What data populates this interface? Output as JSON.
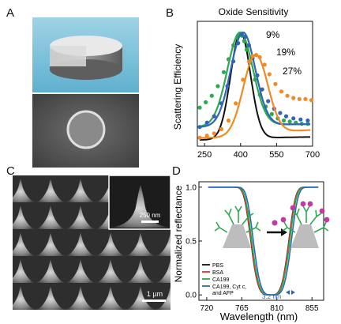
{
  "figure": {
    "panel_labels": [
      "A",
      "B",
      "C",
      "D"
    ],
    "panelC": {
      "inset_scale": "250 nm",
      "main_scale": "1 µm"
    }
  },
  "chart_data": [
    {
      "type": "line",
      "panel": "B",
      "title": "Oxide Sensitivity",
      "xlabel": "",
      "ylabel": "Scattering Efficiency",
      "xlim": [
        220,
        700
      ],
      "xticks": [
        250,
        400,
        550,
        700
      ],
      "xtick_labels": [
        "250",
        "400",
        "550",
        "700"
      ],
      "grid": false,
      "annotations": [
        "9%",
        "19%",
        "27%"
      ],
      "colors": {
        "black": "#111111",
        "green": "#2fa84f",
        "blue": "#2f66b5",
        "orange": "#f08a25"
      },
      "series": [
        {
          "color": "black",
          "peak": 400,
          "width": 58
        },
        {
          "color": "green",
          "peak": 398,
          "width": 75,
          "x": [
            230,
            255,
            280,
            305,
            330,
            350,
            370,
            385,
            395,
            405,
            415,
            425,
            440,
            460,
            480,
            505,
            530,
            555,
            580,
            605,
            630,
            655,
            680
          ],
          "y": [
            0.3,
            0.35,
            0.41,
            0.5,
            0.63,
            0.75,
            0.88,
            0.95,
            0.98,
            0.97,
            0.92,
            0.84,
            0.72,
            0.56,
            0.42,
            0.31,
            0.24,
            0.2,
            0.18,
            0.17,
            0.16,
            0.15,
            0.15
          ]
        },
        {
          "color": "blue",
          "peak": 410,
          "width": 72,
          "x": [
            230,
            260,
            290,
            320,
            345,
            370,
            390,
            405,
            420,
            435,
            450,
            470,
            490,
            515,
            540,
            565,
            590,
            620,
            650,
            680
          ],
          "y": [
            0.12,
            0.16,
            0.22,
            0.34,
            0.5,
            0.73,
            0.9,
            0.98,
            0.96,
            0.88,
            0.76,
            0.6,
            0.47,
            0.36,
            0.29,
            0.25,
            0.22,
            0.2,
            0.19,
            0.18
          ]
        },
        {
          "color": "orange",
          "peak": 462,
          "width": 72,
          "x": [
            230,
            260,
            290,
            320,
            350,
            380,
            410,
            435,
            450,
            465,
            480,
            500,
            520,
            545,
            570,
            595,
            620,
            645,
            670,
            695
          ],
          "y": [
            0.02,
            0.04,
            0.06,
            0.1,
            0.18,
            0.34,
            0.56,
            0.73,
            0.78,
            0.79,
            0.77,
            0.7,
            0.61,
            0.52,
            0.45,
            0.41,
            0.39,
            0.38,
            0.38,
            0.37
          ]
        }
      ]
    },
    {
      "type": "line",
      "panel": "D",
      "title": "",
      "xlabel": "Wavelength (nm)",
      "ylabel": "Normalized reflectance",
      "xlim": [
        710,
        870
      ],
      "ylim": [
        -0.05,
        1.05
      ],
      "xticks": [
        720,
        765,
        810,
        855
      ],
      "yticks": [
        0.0,
        0.5,
        1.0
      ],
      "xtick_labels": [
        "720",
        "765",
        "810",
        "855"
      ],
      "ytick_labels": [
        "0.0",
        "0.5",
        "1.0"
      ],
      "grid": false,
      "legend_position": "bottom-left",
      "shift_label": "3.2 nm",
      "colors": {
        "PBS": "#111111",
        "BSA": "#d9352b",
        "CA199": "#2fa84f",
        "CA199, Cyt c, and AFP": "#2f66b5"
      },
      "series": [
        {
          "name": "PBS",
          "center": 801.0
        },
        {
          "name": "BSA",
          "center": 801.3
        },
        {
          "name": "CA199",
          "center": 802.2
        },
        {
          "name": "CA199, Cyt c, and AFP",
          "center": 804.2
        }
      ]
    }
  ]
}
